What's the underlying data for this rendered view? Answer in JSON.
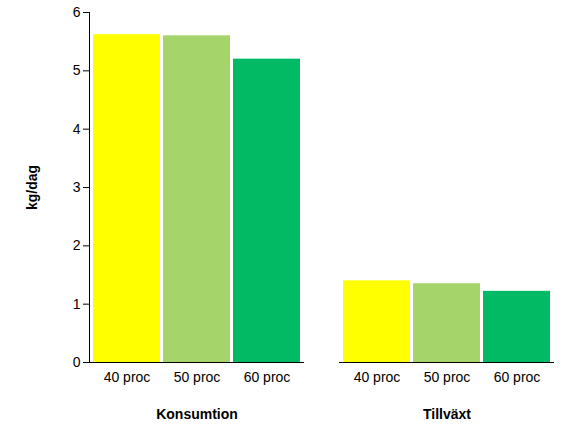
{
  "chart_data": {
    "type": "bar",
    "categories": [
      "Konsumtion",
      "Tillväxt"
    ],
    "series": [
      {
        "name": "40 proc",
        "color": "#ffff00",
        "values": [
          5.62,
          1.4
        ]
      },
      {
        "name": "50 proc",
        "color": "#a5d46a",
        "values": [
          5.6,
          1.35
        ]
      },
      {
        "name": "60 proc",
        "color": "#00bb63",
        "values": [
          5.2,
          1.22
        ]
      }
    ],
    "ylabel": "kg/dag",
    "ylim": [
      0,
      6
    ],
    "yticks": [
      0,
      1,
      2,
      3,
      4,
      5,
      6
    ],
    "grid": false
  }
}
